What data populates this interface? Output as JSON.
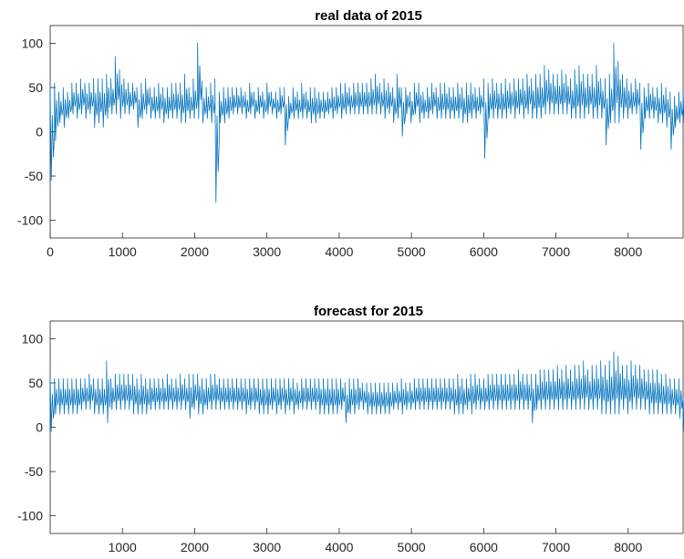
{
  "chart_data": [
    {
      "type": "line",
      "title": "real data of 2015",
      "xlabel": "",
      "ylabel": "",
      "xlim": [
        0,
        8760
      ],
      "ylim": [
        -120,
        120
      ],
      "xticks": [
        0,
        1000,
        2000,
        3000,
        4000,
        5000,
        6000,
        7000,
        8000
      ],
      "yticks": [
        -100,
        -50,
        0,
        50,
        100
      ],
      "grid": false,
      "color": "#0072BD",
      "series": [
        {
          "step": 60,
          "x_start": 0,
          "min": [
            -55,
            -10,
            10,
            5,
            15,
            20,
            15,
            20,
            15,
            20,
            5,
            10,
            5,
            15,
            20,
            20,
            15,
            20,
            20,
            25,
            5,
            15,
            20,
            15,
            15,
            15,
            10,
            15,
            15,
            15,
            10,
            10,
            15,
            15,
            15,
            10,
            15,
            10,
            -80,
            10,
            10,
            15,
            20,
            20,
            20,
            15,
            20,
            15,
            20,
            15,
            20,
            20,
            15,
            20,
            -15,
            15,
            15,
            15,
            15,
            15,
            10,
            10,
            15,
            15,
            20,
            15,
            20,
            15,
            20,
            20,
            20,
            20,
            20,
            20,
            20,
            20,
            20,
            15,
            20,
            10,
            15,
            -5,
            20,
            10,
            20,
            10,
            15,
            15,
            20,
            15,
            15,
            15,
            15,
            15,
            15,
            10,
            10,
            15,
            15,
            20,
            -30,
            15,
            15,
            15,
            15,
            15,
            20,
            15,
            20,
            15,
            20,
            15,
            15,
            15,
            20,
            20,
            20,
            20,
            20,
            20,
            15,
            15,
            15,
            15,
            20,
            15,
            15,
            15,
            -15,
            10,
            10,
            10,
            15,
            15,
            20,
            20,
            -20,
            15,
            15,
            15,
            10,
            10,
            5,
            -20,
            5,
            10,
            10
          ],
          "max": [
            50,
            55,
            45,
            50,
            45,
            55,
            55,
            60,
            55,
            55,
            60,
            60,
            60,
            65,
            60,
            85,
            70,
            60,
            55,
            55,
            50,
            55,
            60,
            50,
            50,
            55,
            50,
            50,
            55,
            55,
            55,
            65,
            50,
            60,
            100,
            50,
            50,
            55,
            60,
            45,
            50,
            50,
            50,
            50,
            50,
            45,
            55,
            45,
            50,
            45,
            55,
            45,
            45,
            50,
            50,
            40,
            50,
            45,
            55,
            45,
            50,
            50,
            45,
            45,
            45,
            50,
            50,
            55,
            55,
            50,
            55,
            55,
            55,
            55,
            60,
            65,
            55,
            60,
            55,
            50,
            65,
            50,
            50,
            45,
            55,
            55,
            45,
            50,
            55,
            50,
            55,
            55,
            50,
            50,
            55,
            50,
            55,
            55,
            50,
            50,
            60,
            55,
            60,
            55,
            55,
            60,
            55,
            60,
            60,
            60,
            65,
            60,
            65,
            65,
            75,
            70,
            65,
            65,
            70,
            65,
            60,
            70,
            75,
            65,
            65,
            65,
            75,
            60,
            60,
            65,
            100,
            80,
            65,
            60,
            55,
            60,
            55,
            50,
            55,
            50,
            50,
            55,
            50,
            45,
            40,
            45,
            45
          ]
        }
      ]
    },
    {
      "type": "line",
      "title": "forecast for 2015",
      "xlabel": "",
      "ylabel": "",
      "xlim": [
        0,
        8760
      ],
      "ylim": [
        -120,
        120
      ],
      "xticks": [
        1000,
        2000,
        3000,
        4000,
        5000,
        6000,
        7000,
        8000
      ],
      "yticks": [
        -100,
        -50,
        0,
        50,
        100
      ],
      "grid": false,
      "color": "#0072BD",
      "series": [
        {
          "step": 60,
          "x_start": 0,
          "min": [
            -5,
            15,
            15,
            15,
            15,
            15,
            15,
            20,
            20,
            20,
            15,
            15,
            15,
            5,
            20,
            20,
            20,
            20,
            20,
            15,
            15,
            15,
            15,
            20,
            20,
            20,
            20,
            20,
            20,
            20,
            20,
            20,
            10,
            20,
            15,
            15,
            20,
            20,
            20,
            20,
            20,
            20,
            20,
            20,
            20,
            15,
            20,
            20,
            15,
            15,
            15,
            20,
            15,
            20,
            15,
            20,
            15,
            20,
            20,
            20,
            20,
            20,
            15,
            15,
            15,
            15,
            15,
            20,
            5,
            15,
            15,
            20,
            20,
            15,
            15,
            15,
            15,
            15,
            15,
            20,
            20,
            15,
            20,
            20,
            20,
            20,
            20,
            20,
            20,
            20,
            20,
            20,
            20,
            15,
            15,
            15,
            20,
            15,
            20,
            20,
            20,
            20,
            20,
            20,
            20,
            20,
            20,
            20,
            20,
            20,
            20,
            5,
            20,
            20,
            20,
            20,
            20,
            20,
            20,
            20,
            20,
            20,
            20,
            20,
            20,
            20,
            20,
            15,
            15,
            15,
            15,
            15,
            20,
            15,
            20,
            20,
            20,
            20,
            15,
            15,
            15,
            15,
            15,
            15,
            15,
            10,
            -5
          ],
          "max": [
            55,
            55,
            55,
            55,
            55,
            55,
            55,
            55,
            55,
            60,
            55,
            55,
            55,
            75,
            55,
            60,
            60,
            60,
            60,
            60,
            55,
            60,
            55,
            55,
            55,
            55,
            55,
            60,
            55,
            55,
            60,
            55,
            60,
            60,
            60,
            55,
            55,
            60,
            60,
            55,
            55,
            55,
            55,
            55,
            55,
            55,
            55,
            55,
            55,
            55,
            55,
            55,
            55,
            55,
            55,
            55,
            55,
            50,
            55,
            55,
            55,
            55,
            55,
            55,
            55,
            55,
            55,
            55,
            50,
            55,
            55,
            55,
            50,
            50,
            50,
            50,
            50,
            50,
            50,
            50,
            50,
            55,
            50,
            50,
            55,
            55,
            55,
            55,
            55,
            55,
            55,
            55,
            55,
            55,
            60,
            55,
            55,
            60,
            60,
            55,
            55,
            60,
            60,
            60,
            60,
            60,
            60,
            60,
            65,
            60,
            60,
            60,
            60,
            65,
            65,
            65,
            65,
            70,
            65,
            70,
            65,
            70,
            70,
            75,
            65,
            70,
            70,
            75,
            70,
            75,
            85,
            80,
            70,
            70,
            75,
            70,
            70,
            65,
            65,
            65,
            65,
            60,
            60,
            55,
            55,
            55,
            35
          ]
        }
      ]
    }
  ]
}
